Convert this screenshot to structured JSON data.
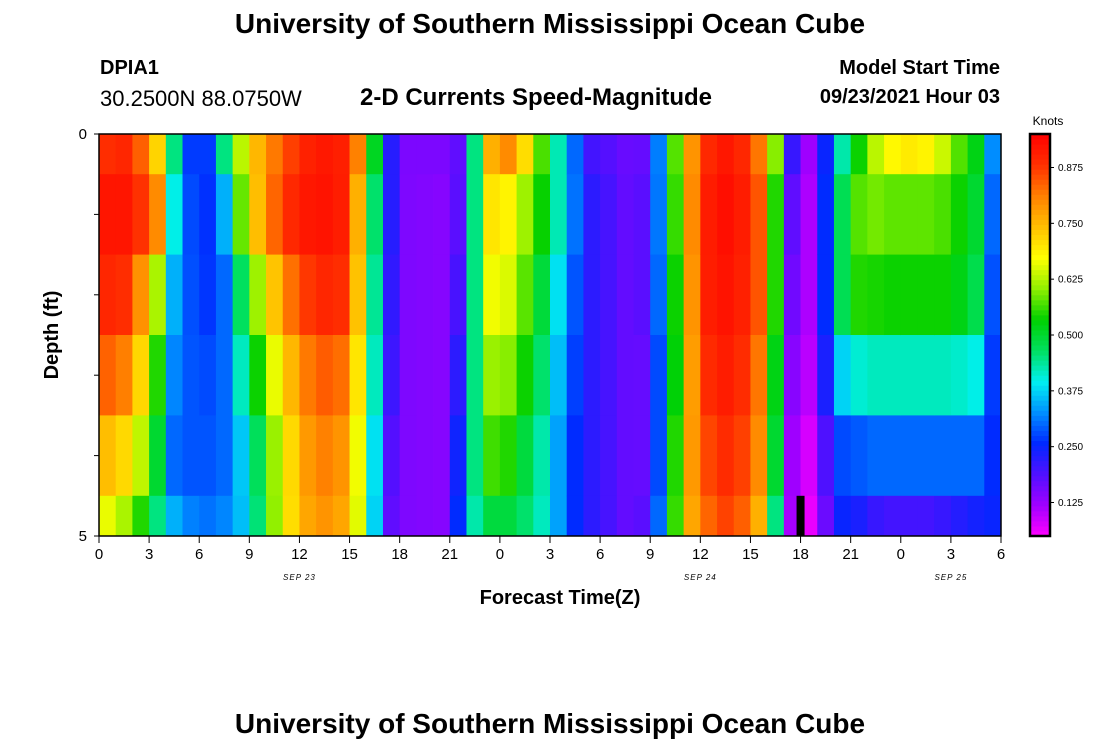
{
  "header": {
    "title": "University of Southern Mississippi Ocean Cube",
    "station": "DPIA1",
    "coords": "30.2500N  88.0750W",
    "plot_title": "2-D Currents Speed-Magnitude",
    "model_start_label": "Model Start Time",
    "model_start_value": "09/23/2021 Hour 03"
  },
  "footer": {
    "title": "University of Southern Mississippi Ocean Cube"
  },
  "chart_data": {
    "type": "heatmap",
    "title": "2-D Currents Speed-Magnitude",
    "xlabel": "Forecast Time(Z)",
    "ylabel": "Depth (ft)",
    "y_ticks": [
      "0",
      "5"
    ],
    "ylim": [
      0,
      5
    ],
    "x_tick_labels": [
      "0",
      "3",
      "6",
      "9",
      "12",
      "15",
      "18",
      "21",
      "0",
      "3",
      "6",
      "9",
      "12",
      "15",
      "18",
      "21",
      "0",
      "3",
      "6"
    ],
    "x_tick_hours": [
      0,
      3,
      6,
      9,
      12,
      15,
      18,
      21,
      24,
      27,
      30,
      33,
      36,
      39,
      42,
      45,
      48,
      51,
      54
    ],
    "xlim_hours": [
      0,
      54
    ],
    "date_labels": [
      {
        "text": "SEP 23",
        "hour": 12
      },
      {
        "text": "SEP 24",
        "hour": 36
      },
      {
        "text": "SEP 25",
        "hour": 51
      }
    ],
    "depth_layers": [
      "0.0-0.5",
      "0.5-1.5",
      "1.5-2.5",
      "2.5-3.5",
      "3.5-4.5",
      "4.5-5.0"
    ],
    "profiles": [
      {
        "hour": 0,
        "values": [
          0.88,
          0.92,
          0.9,
          0.85,
          0.76,
          0.68
        ]
      },
      {
        "hour": 2,
        "values": [
          0.9,
          0.92,
          0.88,
          0.8,
          0.7,
          0.6
        ]
      },
      {
        "hour": 3.5,
        "values": [
          0.72,
          0.8,
          0.62,
          0.55,
          0.5,
          0.45
        ]
      },
      {
        "hour": 4.5,
        "values": [
          0.45,
          0.4,
          0.35,
          0.32,
          0.3,
          0.35
        ]
      },
      {
        "hour": 6,
        "values": [
          0.18,
          0.22,
          0.25,
          0.27,
          0.28,
          0.3
        ]
      },
      {
        "hour": 7.5,
        "values": [
          0.45,
          0.35,
          0.3,
          0.3,
          0.3,
          0.32
        ]
      },
      {
        "hour": 9,
        "values": [
          0.72,
          0.7,
          0.55,
          0.48,
          0.4,
          0.38
        ]
      },
      {
        "hour": 11,
        "values": [
          0.85,
          0.88,
          0.8,
          0.72,
          0.68,
          0.68
        ]
      },
      {
        "hour": 13,
        "values": [
          0.92,
          0.93,
          0.9,
          0.85,
          0.82,
          0.8
        ]
      },
      {
        "hour": 15,
        "values": [
          0.9,
          0.9,
          0.88,
          0.82,
          0.78,
          0.76
        ]
      },
      {
        "hour": 16,
        "values": [
          0.72,
          0.62,
          0.6,
          0.58,
          0.55,
          0.55
        ]
      },
      {
        "hour": 17,
        "values": [
          0.3,
          0.3,
          0.28,
          0.26,
          0.22,
          0.2
        ]
      },
      {
        "hour": 18,
        "values": [
          0.15,
          0.15,
          0.15,
          0.15,
          0.15,
          0.15
        ]
      },
      {
        "hour": 21,
        "values": [
          0.15,
          0.14,
          0.14,
          0.14,
          0.14,
          0.14
        ]
      },
      {
        "hour": 22,
        "values": [
          0.2,
          0.22,
          0.25,
          0.3,
          0.35,
          0.38
        ]
      },
      {
        "hour": 23,
        "values": [
          0.7,
          0.68,
          0.65,
          0.6,
          0.55,
          0.48
        ]
      },
      {
        "hour": 24,
        "values": [
          0.82,
          0.72,
          0.68,
          0.62,
          0.58,
          0.5
        ]
      },
      {
        "hour": 25,
        "values": [
          0.78,
          0.65,
          0.62,
          0.58,
          0.52,
          0.48
        ]
      },
      {
        "hour": 27,
        "values": [
          0.5,
          0.5,
          0.45,
          0.42,
          0.4,
          0.4
        ]
      },
      {
        "hour": 28,
        "values": [
          0.35,
          0.35,
          0.32,
          0.3,
          0.28,
          0.28
        ]
      },
      {
        "hour": 29.5,
        "values": [
          0.2,
          0.22,
          0.22,
          0.22,
          0.22,
          0.22
        ]
      },
      {
        "hour": 32,
        "values": [
          0.16,
          0.16,
          0.16,
          0.16,
          0.16,
          0.16
        ]
      },
      {
        "hour": 33,
        "values": [
          0.18,
          0.2,
          0.2,
          0.18,
          0.18,
          0.2
        ]
      },
      {
        "hour": 34,
        "values": [
          0.45,
          0.42,
          0.4,
          0.38,
          0.38,
          0.4
        ]
      },
      {
        "hour": 35,
        "values": [
          0.7,
          0.7,
          0.68,
          0.68,
          0.72,
          0.72
        ]
      },
      {
        "hour": 36,
        "values": [
          0.88,
          0.9,
          0.9,
          0.88,
          0.85,
          0.82
        ]
      },
      {
        "hour": 38,
        "values": [
          0.93,
          0.94,
          0.93,
          0.92,
          0.9,
          0.88
        ]
      },
      {
        "hour": 39.5,
        "values": [
          0.82,
          0.85,
          0.85,
          0.82,
          0.8,
          0.76
        ]
      },
      {
        "hour": 40.5,
        "values": [
          0.6,
          0.55,
          0.55,
          0.52,
          0.5,
          0.45
        ]
      },
      {
        "hour": 41,
        "values": [
          0.3,
          0.25,
          0.22,
          0.2,
          0.18,
          0.18
        ]
      },
      {
        "hour": 42,
        "values": [
          0.12,
          0.1,
          0.1,
          0.08,
          0.06,
          0.05
        ]
      },
      {
        "hour": 43,
        "values": [
          0.12,
          0.12,
          0.12,
          0.12,
          0.1,
          0.08
        ]
      },
      {
        "hour": 44,
        "values": [
          0.38,
          0.4,
          0.4,
          0.35,
          0.28,
          0.25
        ]
      },
      {
        "hour": 45,
        "values": [
          0.48,
          0.55,
          0.55,
          0.4,
          0.28,
          0.25
        ]
      },
      {
        "hour": 46,
        "values": [
          0.6,
          0.6,
          0.55,
          0.42,
          0.3,
          0.22
        ]
      },
      {
        "hour": 47,
        "values": [
          0.66,
          0.58,
          0.54,
          0.42,
          0.3,
          0.2
        ]
      },
      {
        "hour": 48,
        "values": [
          0.7,
          0.58,
          0.54,
          0.42,
          0.3,
          0.2
        ]
      },
      {
        "hour": 50,
        "values": [
          0.68,
          0.58,
          0.54,
          0.42,
          0.3,
          0.2
        ]
      },
      {
        "hour": 51,
        "values": [
          0.6,
          0.56,
          0.54,
          0.42,
          0.3,
          0.22
        ]
      },
      {
        "hour": 52.5,
        "values": [
          0.52,
          0.5,
          0.48,
          0.4,
          0.3,
          0.24
        ]
      },
      {
        "hour": 53,
        "values": [
          0.4,
          0.35,
          0.33,
          0.3,
          0.28,
          0.26
        ]
      },
      {
        "hour": 54,
        "values": [
          0.25,
          0.25,
          0.24,
          0.24,
          0.24,
          0.24
        ]
      }
    ],
    "colorbar": {
      "unit": "Knots",
      "min": 0.05,
      "max": 0.95,
      "ticks": [
        "0.875",
        "0.750",
        "0.625",
        "0.500",
        "0.375",
        "0.250",
        "0.125"
      ],
      "tick_values": [
        0.875,
        0.75,
        0.625,
        0.5,
        0.375,
        0.25,
        0.125
      ],
      "colors": [
        "#ff00ff",
        "#a000ff",
        "#5010ff",
        "#0028ff",
        "#0090ff",
        "#00f0f0",
        "#00e060",
        "#00d000",
        "#90f000",
        "#ffff00",
        "#ffc000",
        "#ff8000",
        "#ff3000",
        "#ff0000"
      ]
    },
    "marker": {
      "hour": 42,
      "depth_range": [
        4.5,
        5.0
      ],
      "color": "#000000"
    }
  }
}
